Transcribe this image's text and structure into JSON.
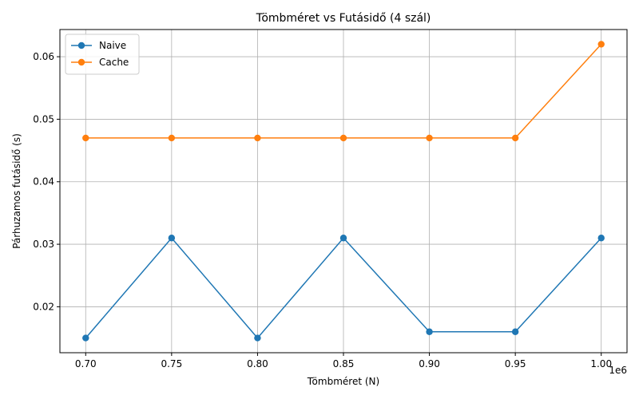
{
  "chart_data": {
    "type": "line",
    "title": "Tömbméret vs Futásidő (4 szál)",
    "xlabel": "Tömbméret (N)",
    "ylabel": "Párhuzamos futásidő (s)",
    "x_offset_label": "1e6",
    "x": [
      0.7,
      0.75,
      0.8,
      0.85,
      0.9,
      0.95,
      1.0
    ],
    "x_ticks": [
      "0.70",
      "0.75",
      "0.80",
      "0.85",
      "0.90",
      "0.95",
      "1.00"
    ],
    "y_ticks": [
      0.02,
      0.03,
      0.04,
      0.05,
      0.06
    ],
    "y_tick_labels": [
      "0.02",
      "0.03",
      "0.04",
      "0.05",
      "0.06"
    ],
    "xlim": [
      0.685,
      1.015
    ],
    "ylim": [
      0.01265,
      0.06435
    ],
    "grid": true,
    "legend_position": "upper-left",
    "series": [
      {
        "name": "Naive",
        "color": "#1f77b4",
        "values": [
          0.015,
          0.031,
          0.015,
          0.031,
          0.016,
          0.016,
          0.031
        ]
      },
      {
        "name": "Cache",
        "color": "#ff7f0e",
        "values": [
          0.047,
          0.047,
          0.047,
          0.047,
          0.047,
          0.047,
          0.062
        ]
      }
    ]
  }
}
